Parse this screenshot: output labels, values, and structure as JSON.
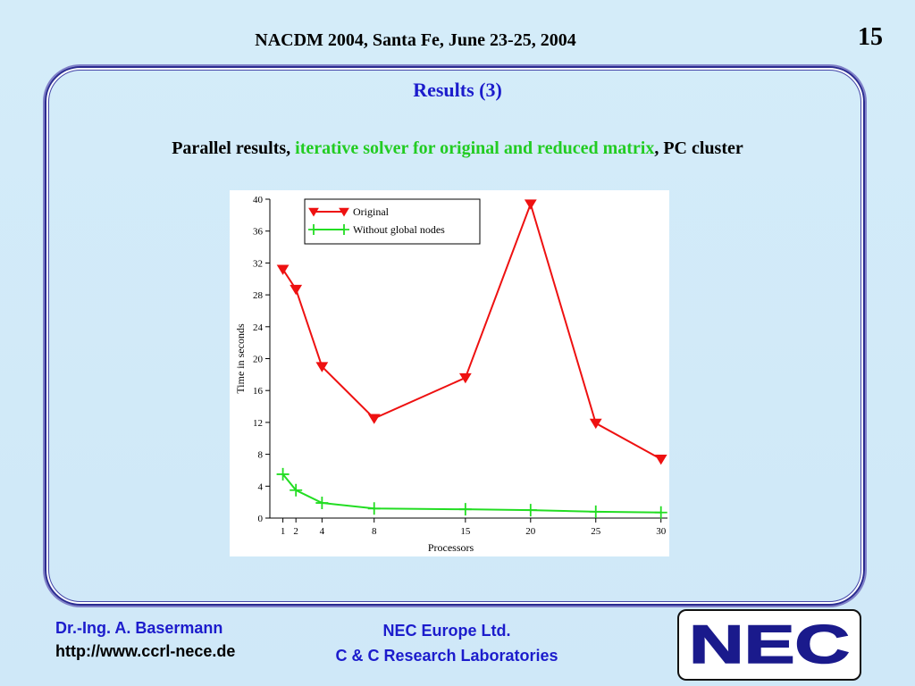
{
  "header": {
    "conference": "NACDM 2004, Santa Fe, June 23-25, 2004",
    "page_number": "15"
  },
  "slide": {
    "title": "Results (3)",
    "subtitle_part1": "Parallel results, ",
    "subtitle_highlight": "iterative solver for original and reduced matrix",
    "subtitle_part2": ", PC cluster"
  },
  "footer": {
    "author": "Dr.-Ing. A. Basermann",
    "url": "http://www.ccrl-nece.de",
    "org_line1": "NEC Europe Ltd.",
    "org_line2": "C & C Research Laboratories",
    "logo_text": "NEC"
  },
  "colors": {
    "title_blue": "#1c1ccc",
    "highlight_green": "#22cc22",
    "original_red": "#ee1111",
    "without_green": "#22dd22"
  },
  "chart_data": {
    "type": "line",
    "title": "",
    "xlabel": "Processors",
    "ylabel": "Time in seconds",
    "categories": [
      "1",
      "2",
      "4",
      "8",
      "15",
      "20",
      "25",
      "30"
    ],
    "x": [
      1,
      2,
      4,
      8,
      15,
      20,
      25,
      30
    ],
    "xticks": [
      1,
      2,
      4,
      8,
      15,
      20,
      25,
      30
    ],
    "yticks": [
      0,
      4,
      8,
      12,
      16,
      20,
      24,
      28,
      32,
      36,
      40
    ],
    "xlim": [
      0,
      30.5
    ],
    "ylim": [
      0,
      40
    ],
    "grid": false,
    "legend_position": "top-left",
    "series": [
      {
        "name": "Original",
        "marker": "triangle-down",
        "color": "#ee1111",
        "values": [
          31.2,
          28.7,
          19.0,
          12.5,
          17.6,
          39.4,
          11.9,
          7.4
        ]
      },
      {
        "name": "Without global nodes",
        "marker": "plus",
        "color": "#22dd22",
        "values": [
          5.5,
          3.5,
          1.9,
          1.2,
          1.1,
          1.0,
          0.8,
          0.7
        ]
      }
    ]
  }
}
